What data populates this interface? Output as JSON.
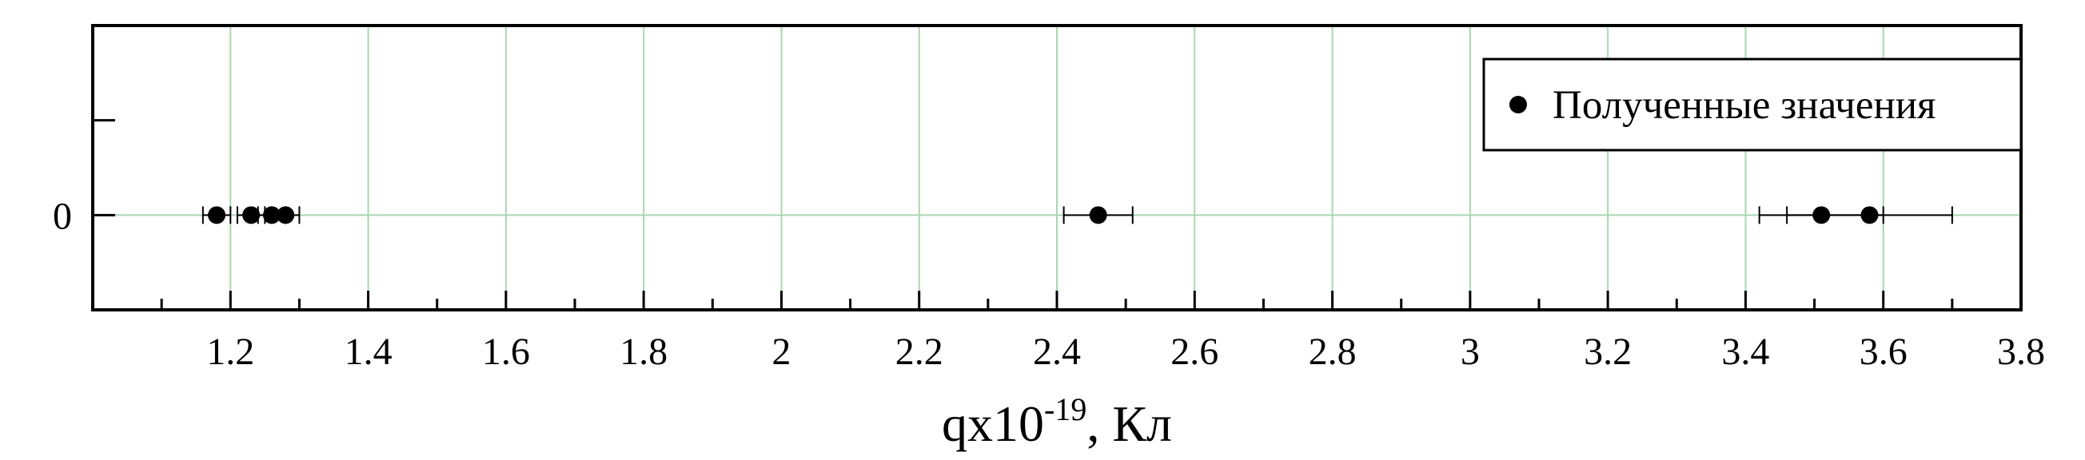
{
  "chart_data": {
    "type": "scatter",
    "title": "",
    "xlabel": {
      "main": "qx10",
      "exponent": "-19",
      "suffix": ", Кл"
    },
    "ylabel": "",
    "xlim": [
      1.0,
      3.8
    ],
    "ylim": [
      -0.5,
      1.0
    ],
    "x_major_ticks": [
      1.2,
      1.4,
      1.6,
      1.8,
      2.0,
      2.2,
      2.4,
      2.6,
      2.8,
      3.0,
      3.2,
      3.4,
      3.6,
      3.8
    ],
    "x_tick_labels": [
      "1.2",
      "1.4",
      "1.6",
      "1.8",
      "2",
      "2.2",
      "2.4",
      "2.6",
      "2.8",
      "3",
      "3.2",
      "3.4",
      "3.6",
      "3.8"
    ],
    "x_minor_ticks": [
      1.1,
      1.3,
      1.5,
      1.7,
      1.9,
      2.1,
      2.3,
      2.5,
      2.7,
      2.9,
      3.1,
      3.3,
      3.5,
      3.7
    ],
    "y_ticks": [
      0,
      0.5
    ],
    "y_tick_labels": [
      "0",
      ""
    ],
    "grid": true,
    "grid_color": "#a8d8b0",
    "legend": {
      "position": "top-right"
    },
    "series": [
      {
        "name": "Полученные значения",
        "marker": "circle",
        "color": "#000000",
        "points": [
          {
            "x": 1.18,
            "y": 0,
            "xerr": 0.02
          },
          {
            "x": 1.23,
            "y": 0,
            "xerr": 0.02
          },
          {
            "x": 1.26,
            "y": 0,
            "xerr": 0.02
          },
          {
            "x": 1.28,
            "y": 0,
            "xerr": 0.02
          },
          {
            "x": 2.46,
            "y": 0,
            "xerr": 0.05
          },
          {
            "x": 3.51,
            "y": 0,
            "xerr": 0.09
          },
          {
            "x": 3.58,
            "y": 0,
            "xerr": 0.12
          }
        ]
      }
    ]
  }
}
